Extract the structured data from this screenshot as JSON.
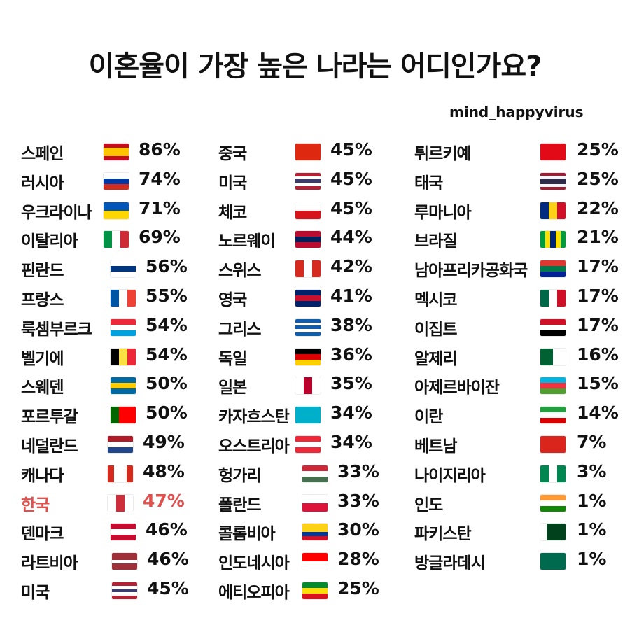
{
  "title": "이혼율이 가장 높은 나라는 어디인가요?",
  "credit": "mind_happyvirus",
  "highlight_color": "#e0504d",
  "chart_data": {
    "type": "table",
    "columns": [
      [
        {
          "name": "스페인",
          "value": "86%",
          "flag": {
            "dir": "column",
            "colors": [
              "#c60b1e",
              "#ffc400",
              "#ffc400",
              "#c60b1e"
            ]
          }
        },
        {
          "name": "러시아",
          "value": "74%",
          "flag": {
            "dir": "column",
            "colors": [
              "#ffffff",
              "#0039a6",
              "#d52b1e"
            ]
          }
        },
        {
          "name": "우크라이나",
          "value": "71%",
          "flag": {
            "dir": "column",
            "colors": [
              "#0057b7",
              "#ffd700"
            ]
          }
        },
        {
          "name": "이탈리아",
          "value": "69%",
          "flag": {
            "dir": "row",
            "colors": [
              "#009246",
              "#ffffff",
              "#ce2b37"
            ]
          }
        },
        {
          "name": "핀란드",
          "value": "56%",
          "flag": {
            "dir": "column",
            "colors": [
              "#ffffff",
              "#003580",
              "#ffffff"
            ]
          }
        },
        {
          "name": "프랑스",
          "value": "55%",
          "flag": {
            "dir": "row",
            "colors": [
              "#0055a4",
              "#ffffff",
              "#ef4135"
            ]
          }
        },
        {
          "name": "룩셈부르크",
          "value": "54%",
          "flag": {
            "dir": "column",
            "colors": [
              "#ed2939",
              "#ffffff",
              "#00a1de"
            ]
          }
        },
        {
          "name": "벨기에",
          "value": "54%",
          "flag": {
            "dir": "row",
            "colors": [
              "#000000",
              "#fae042",
              "#ed2939"
            ]
          }
        },
        {
          "name": "스웨덴",
          "value": "50%",
          "flag": {
            "dir": "column",
            "colors": [
              "#006aa7",
              "#fecc00",
              "#006aa7"
            ]
          }
        },
        {
          "name": " 포르투갈",
          "value": "50%",
          "flag": {
            "dir": "row",
            "colors": [
              "#006600",
              "#ff0000",
              "#ff0000"
            ]
          }
        },
        {
          "name": "네덜란드",
          "value": "49%",
          "flag": {
            "dir": "column",
            "colors": [
              "#ae1c28",
              "#ffffff",
              "#21468b"
            ]
          }
        },
        {
          "name": "캐나다",
          "value": "48%",
          "flag": {
            "dir": "row",
            "colors": [
              "#d52b1e",
              "#ffffff",
              "#ffffff",
              "#d52b1e"
            ]
          }
        },
        {
          "name": "한국",
          "value": "47%",
          "highlight": true,
          "flag": {
            "dir": "row",
            "colors": [
              "#ffffff",
              "#cd2e3a",
              "#ffffff"
            ]
          }
        },
        {
          "name": "덴마크",
          "value": "46%",
          "flag": {
            "dir": "column",
            "colors": [
              "#c60c30",
              "#ffffff",
              "#c60c30"
            ]
          }
        },
        {
          "name": "라트비아",
          "value": "46%",
          "flag": {
            "dir": "column",
            "colors": [
              "#9e3039",
              "#9e3039",
              "#ffffff",
              "#9e3039",
              "#9e3039"
            ]
          }
        },
        {
          "name": "미국",
          "value": "45%",
          "flag": {
            "dir": "column",
            "colors": [
              "#b22234",
              "#ffffff",
              "#3c3b6e",
              "#ffffff",
              "#b22234"
            ]
          }
        }
      ],
      [
        {
          "name": "중국",
          "value": "45%",
          "flag": {
            "dir": "column",
            "colors": [
              "#de2910"
            ]
          }
        },
        {
          "name": "미국",
          "value": "45%",
          "flag": {
            "dir": "column",
            "colors": [
              "#b22234",
              "#ffffff",
              "#3c3b6e",
              "#ffffff",
              "#b22234"
            ]
          }
        },
        {
          "name": "체코",
          "value": "45%",
          "flag": {
            "dir": "column",
            "colors": [
              "#ffffff",
              "#d7141a"
            ]
          }
        },
        {
          "name": "노르웨이",
          "value": "44%",
          "flag": {
            "dir": "column",
            "colors": [
              "#ba0c2f",
              "#00205b",
              "#ba0c2f"
            ]
          }
        },
        {
          "name": "스위스",
          "value": "42%",
          "flag": {
            "dir": "row",
            "colors": [
              "#d52b1e",
              "#ffffff",
              "#d52b1e"
            ]
          }
        },
        {
          "name": "영국",
          "value": "41%",
          "flag": {
            "dir": "column",
            "colors": [
              "#012169",
              "#c8102e",
              "#012169"
            ]
          }
        },
        {
          "name": "그리스",
          "value": "38%",
          "flag": {
            "dir": "column",
            "colors": [
              "#0d5eaf",
              "#ffffff",
              "#0d5eaf",
              "#ffffff",
              "#0d5eaf"
            ]
          }
        },
        {
          "name": "독일",
          "value": "36%",
          "flag": {
            "dir": "column",
            "colors": [
              "#000000",
              "#dd0000",
              "#ffce00"
            ]
          }
        },
        {
          "name": "일본",
          "value": "35%",
          "flag": {
            "dir": "row",
            "colors": [
              "#ffffff",
              "#bc002d",
              "#ffffff"
            ]
          }
        },
        {
          "name": "카자흐스탄",
          "value": "34%",
          "flag": {
            "dir": "column",
            "colors": [
              "#00afca"
            ]
          }
        },
        {
          "name": "오스트리아",
          "value": "34%",
          "flag": {
            "dir": "column",
            "colors": [
              "#ed2939",
              "#ffffff",
              "#ed2939"
            ]
          }
        },
        {
          "name": "헝가리",
          "value": "33%",
          "flag": {
            "dir": "column",
            "colors": [
              "#ce2939",
              "#ffffff",
              "#477050"
            ]
          }
        },
        {
          "name": "폴란드",
          "value": "33%",
          "flag": {
            "dir": "column",
            "colors": [
              "#ffffff",
              "#dc143c"
            ]
          }
        },
        {
          "name": "콜롬비아",
          "value": "30%",
          "flag": {
            "dir": "column",
            "colors": [
              "#fcd116",
              "#fcd116",
              "#003893",
              "#ce1126"
            ]
          }
        },
        {
          "name": "인도네시아",
          "value": "28%",
          "flag": {
            "dir": "column",
            "colors": [
              "#ff0000",
              "#ffffff"
            ]
          }
        },
        {
          "name": "에티오피아",
          "value": "25%",
          "flag": {
            "dir": "column",
            "colors": [
              "#078930",
              "#fcdd09",
              "#da121a"
            ]
          }
        }
      ],
      [
        {
          "name": "튀르키예",
          "value": "25%",
          "flag": {
            "dir": "column",
            "colors": [
              "#e30a17"
            ]
          }
        },
        {
          "name": "태국",
          "value": "25%",
          "flag": {
            "dir": "column",
            "colors": [
              "#a51931",
              "#f4f5f8",
              "#2d2a4a",
              "#2d2a4a",
              "#f4f5f8",
              "#a51931"
            ]
          }
        },
        {
          "name": "루마니아",
          "value": "22%",
          "flag": {
            "dir": "row",
            "colors": [
              "#002b7f",
              "#fcd116",
              "#ce1126"
            ]
          }
        },
        {
          "name": "브라질",
          "value": "21%",
          "flag": {
            "dir": "row",
            "colors": [
              "#009c3b",
              "#ffdf00",
              "#002776",
              "#ffdf00",
              "#009c3b"
            ]
          }
        },
        {
          "name": "남아프리카공화국",
          "value": "17%",
          "flag": {
            "dir": "column",
            "colors": [
              "#de3831",
              "#007a4d",
              "#002395"
            ]
          }
        },
        {
          "name": "멕시코",
          "value": "17%",
          "flag": {
            "dir": "row",
            "colors": [
              "#006847",
              "#ffffff",
              "#ce1126"
            ]
          }
        },
        {
          "name": "이집트",
          "value": "17%",
          "flag": {
            "dir": "column",
            "colors": [
              "#ce1126",
              "#ffffff",
              "#000000"
            ]
          }
        },
        {
          "name": "알제리",
          "value": "16%",
          "flag": {
            "dir": "row",
            "colors": [
              "#006233",
              "#ffffff"
            ]
          }
        },
        {
          "name": "아제르바이잔",
          "value": "15%",
          "flag": {
            "dir": "column",
            "colors": [
              "#00b5e2",
              "#ef3340",
              "#509e2f"
            ]
          }
        },
        {
          "name": "이란",
          "value": "14%",
          "flag": {
            "dir": "column",
            "colors": [
              "#239f40",
              "#ffffff",
              "#da0000"
            ]
          }
        },
        {
          "name": "베트남",
          "value": "7%",
          "flag": {
            "dir": "column",
            "colors": [
              "#da251d"
            ]
          }
        },
        {
          "name": "나이지리아",
          "value": "3%",
          "flag": {
            "dir": "row",
            "colors": [
              "#008751",
              "#ffffff",
              "#008751"
            ]
          }
        },
        {
          "name": "인도",
          "value": "1%",
          "flag": {
            "dir": "column",
            "colors": [
              "#ff9933",
              "#ffffff",
              "#138808"
            ]
          }
        },
        {
          "name": "파키스탄",
          "value": "1%",
          "flag": {
            "dir": "row",
            "colors": [
              "#ffffff",
              "#01411c",
              "#01411c",
              "#01411c"
            ]
          }
        },
        {
          "name": "방글라데시",
          "value": "1%",
          "flag": {
            "dir": "column",
            "colors": [
              "#006a4e"
            ]
          }
        }
      ]
    ]
  }
}
